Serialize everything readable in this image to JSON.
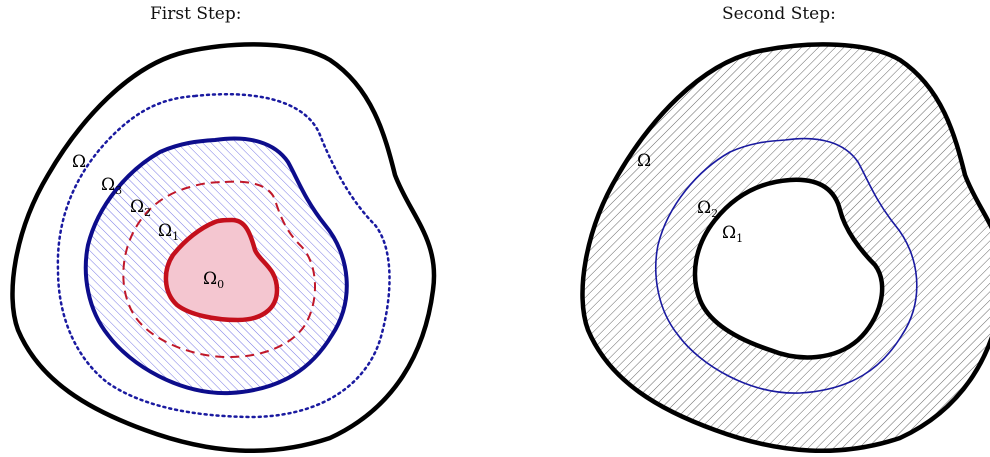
{
  "panels": {
    "left": {
      "title": "First Step:",
      "labels": {
        "omega": {
          "base": "Ω",
          "sub": ""
        },
        "omega3": {
          "base": "Ω",
          "sub": "3"
        },
        "omega2": {
          "base": "Ω",
          "sub": "2"
        },
        "omega1": {
          "base": "Ω",
          "sub": "1"
        },
        "omega0": {
          "base": "Ω",
          "sub": "0"
        }
      }
    },
    "right": {
      "title": "Second Step:",
      "labels": {
        "omega": {
          "base": "Ω",
          "sub": ""
        },
        "omega2": {
          "base": "Ω",
          "sub": "2"
        },
        "omega1": {
          "base": "Ω",
          "sub": "1"
        }
      }
    }
  },
  "colors": {
    "outer_boundary": "#000000",
    "omega3_dotted": "#1a1aa0",
    "omega2_solid": "#0d0d8c",
    "omega2_hatch": "#7a7ae6",
    "omega1_dashed": "#c0182a",
    "omega0_stroke": "#c4101c",
    "omega0_fill": "#f4c6d0",
    "right_hatch": "#555555",
    "right_omega2": "#1a1aa0"
  }
}
